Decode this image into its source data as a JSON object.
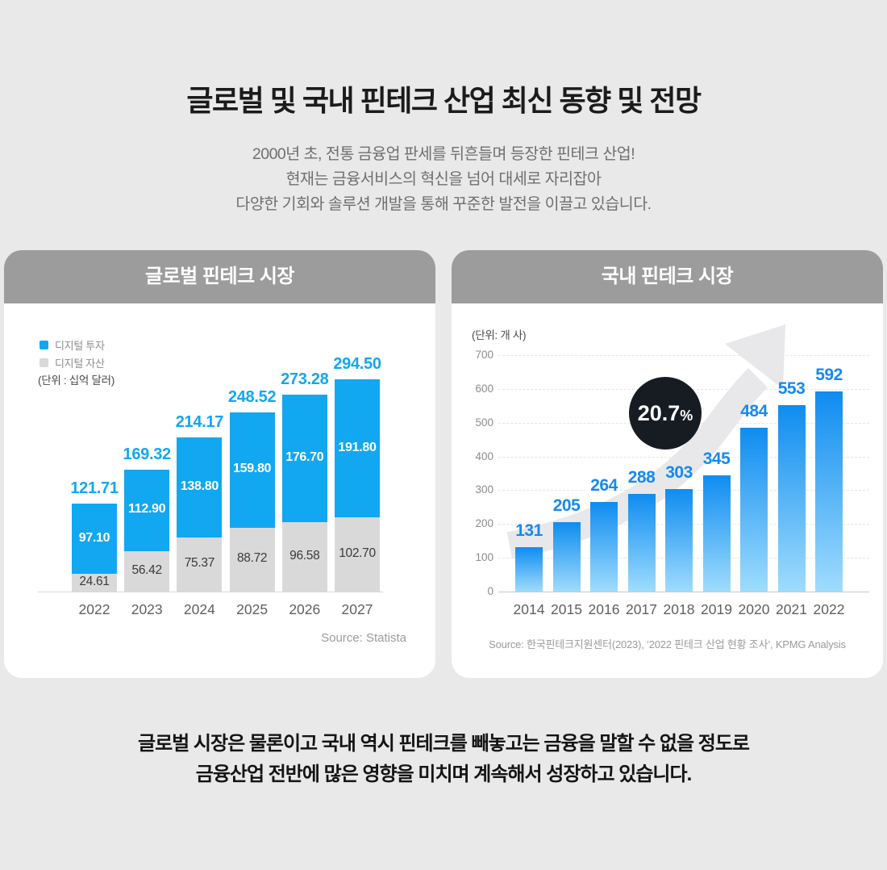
{
  "page": {
    "title": "글로벌 및 국내 핀테크 산업 최신 동향 및 전망",
    "subtitle_lines": [
      "2000년 초, 전통 금융업 판세를 뒤흔들며 등장한 핀테크 산업!",
      "현재는 금융서비스의 혁신을 넘어 대세로 자리잡아",
      "다양한 기회와 솔루션 개발을 통해 꾸준한 발전을 이끌고 있습니다."
    ],
    "footer_lines": [
      "글로벌 시장은 물론이고 국내 역시 핀테크를 빼놓고는 금융을 말할 수 없을 정도로",
      "금융산업 전반에 많은 영향을 미치며 계속해서 성장하고 있습니다."
    ]
  },
  "colors": {
    "accent_blue": "#12a7f1",
    "bar_gray": "#d9d9d9",
    "header_gray": "#9c9c9c",
    "badge_black": "#171c23",
    "label_blue": "#1689f2",
    "page_bg": "#e9e9e9"
  },
  "chart_data": [
    {
      "id": "global-fintech-market",
      "type": "bar",
      "stacked": true,
      "title": "글로벌 핀테크 시장",
      "unit_label": "(단위 : 십억 달러)",
      "legend_position": "top-left",
      "grid": false,
      "categories": [
        "2022",
        "2023",
        "2024",
        "2025",
        "2026",
        "2027"
      ],
      "series": [
        {
          "name": "디지털 투자",
          "color": "#12a7f1",
          "values": [
            97.1,
            112.9,
            138.8,
            159.8,
            176.7,
            191.8
          ],
          "value_labels": [
            "97.10",
            "112.90",
            "138.80",
            "159.80",
            "176.70",
            "191.80"
          ]
        },
        {
          "name": "디지털 자산",
          "color": "#d9d9d9",
          "values": [
            24.61,
            56.42,
            75.37,
            88.72,
            96.58,
            102.7
          ],
          "value_labels": [
            "24.61",
            "56.42",
            "75.37",
            "88.72",
            "96.58",
            "102.70"
          ]
        }
      ],
      "totals": [
        121.71,
        169.32,
        214.17,
        248.52,
        273.28,
        294.5
      ],
      "total_labels": [
        "121.71",
        "169.32",
        "214.17",
        "248.52",
        "273.28",
        "294.50"
      ],
      "source": "Source: Statista"
    },
    {
      "id": "domestic-fintech-market",
      "type": "bar",
      "title": "국내 핀테크 시장",
      "unit_label": "(단위: 개 사)",
      "grid": true,
      "ylim": [
        0,
        700
      ],
      "yticks": [
        0,
        100,
        200,
        300,
        400,
        500,
        600,
        700
      ],
      "categories": [
        "2014",
        "2015",
        "2016",
        "2017",
        "2018",
        "2019",
        "2020",
        "2021",
        "2022"
      ],
      "values": [
        131,
        205,
        264,
        288,
        303,
        345,
        484,
        553,
        592
      ],
      "value_labels": [
        "131",
        "205",
        "264",
        "288",
        "303",
        "345",
        "484",
        "553",
        "592"
      ],
      "bar_gradient": [
        "#0f8cf0",
        "#9fdcfd"
      ],
      "annotation": {
        "value": "20.7",
        "suffix": "%",
        "label": "20.7%"
      },
      "source": "Source: 한국핀테크지원센터(2023), ‘2022 핀테크 산업 현황 조사’, KPMG Analysis"
    }
  ]
}
